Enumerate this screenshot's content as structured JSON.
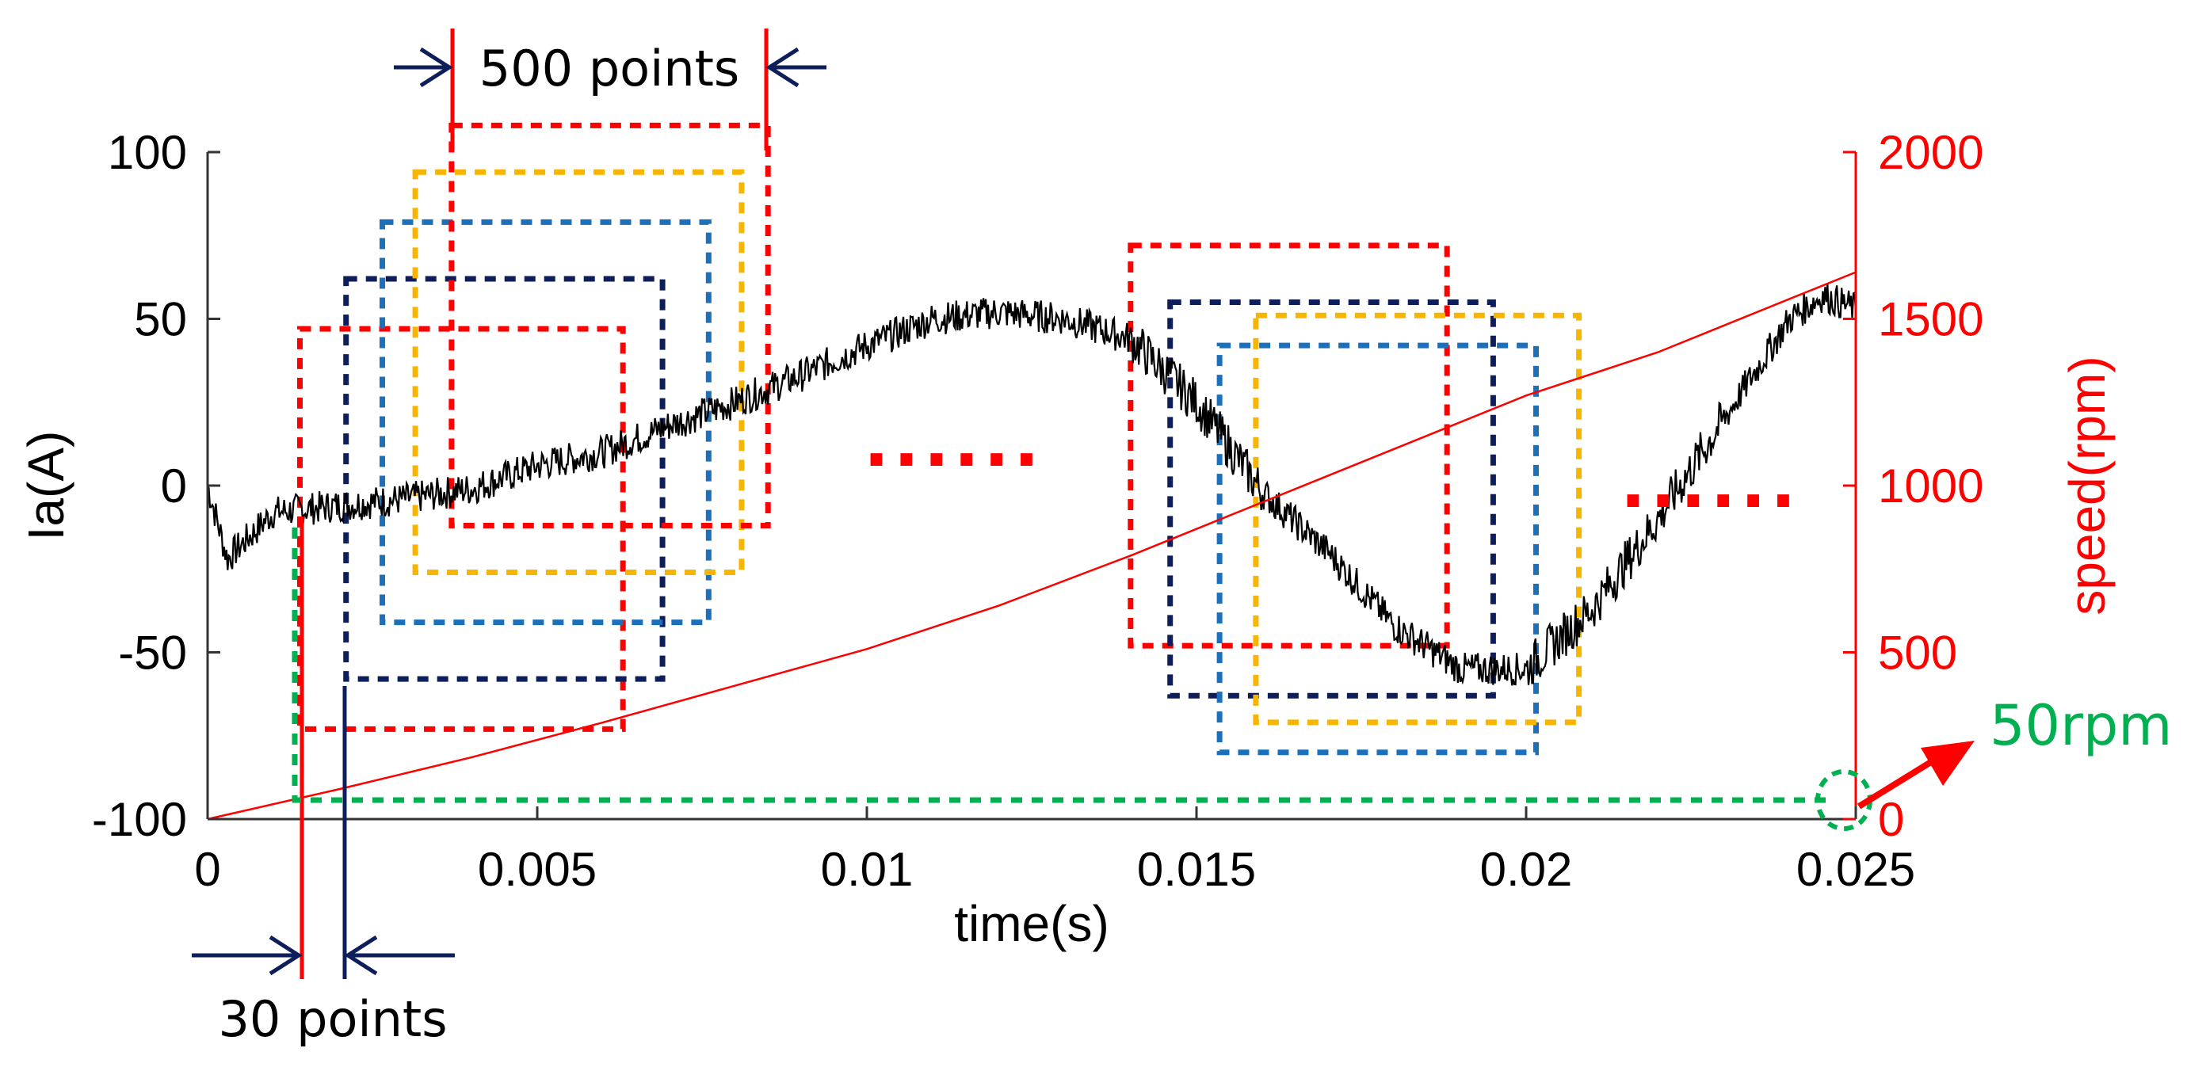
{
  "chart_data": {
    "type": "line",
    "xlabel": "time(s)",
    "ylabel_left": "Ia(A)",
    "ylabel_right": "speed(rpm)",
    "xlim": [
      0,
      0.025
    ],
    "ylim_left": [
      -100,
      100
    ],
    "ylim_right": [
      0,
      2000
    ],
    "x_ticks": [
      "0",
      "0.005",
      "0.01",
      "0.015",
      "0.02",
      "0.025"
    ],
    "y_left_ticks": [
      "100",
      "50",
      "0",
      "-50",
      "-100"
    ],
    "y_right_ticks": [
      "2000",
      "1500",
      "1000",
      "500",
      "0"
    ],
    "grid": false,
    "series": [
      {
        "axis": "left",
        "color": "#000000",
        "x": [
          0,
          0.0003,
          0.001,
          0.002,
          0.003,
          0.004,
          0.005,
          0.006,
          0.007,
          0.008,
          0.009,
          0.01,
          0.011,
          0.012,
          0.013,
          0.014,
          0.015,
          0.016,
          0.017,
          0.018,
          0.019,
          0.02,
          0.021,
          0.022,
          0.023,
          0.024,
          0.0245,
          0.025
        ],
        "y": [
          0,
          -22,
          -8,
          -6,
          -4,
          -1,
          6,
          10,
          18,
          25,
          33,
          42,
          50,
          52,
          50,
          44,
          25,
          -2,
          -20,
          -42,
          -55,
          -55,
          -37,
          -10,
          20,
          50,
          57,
          53
        ]
      },
      {
        "axis": "right",
        "color": "#ff0000",
        "x": [
          0,
          0.002,
          0.004,
          0.006,
          0.008,
          0.01,
          0.012,
          0.014,
          0.016,
          0.018,
          0.02,
          0.022,
          0.024,
          0.025
        ],
        "y": [
          0,
          90,
          185,
          290,
          400,
          510,
          640,
          790,
          950,
          1110,
          1270,
          1400,
          1560,
          1640
        ]
      }
    ],
    "windows": [
      {
        "color": "#ff0000",
        "x0": 0.0014,
        "x1": 0.0063,
        "y0": -73,
        "y1": 47
      },
      {
        "color": "#0d1e5a",
        "x0": 0.0021,
        "x1": 0.0069,
        "y0": -58,
        "y1": 62
      },
      {
        "color": "#1b6fbb",
        "x0": 0.00265,
        "x1": 0.0076,
        "y0": -41,
        "y1": 79
      },
      {
        "color": "#f7b500",
        "x0": 0.00315,
        "x1": 0.0081,
        "y0": -26,
        "y1": 94
      },
      {
        "color": "#ff0000",
        "x0": 0.0037,
        "x1": 0.0085,
        "y0": -12,
        "y1": 108
      },
      {
        "color": "#ff0000",
        "x0": 0.014,
        "x1": 0.0188,
        "y0": -48,
        "y1": 72
      },
      {
        "color": "#0d1e5a",
        "x0": 0.0146,
        "x1": 0.0195,
        "y0": -63,
        "y1": 55
      },
      {
        "color": "#1b6fbb",
        "x0": 0.01535,
        "x1": 0.02015,
        "y0": -80,
        "y1": 42
      },
      {
        "color": "#f7b500",
        "x0": 0.0159,
        "x1": 0.0208,
        "y0": -71,
        "y1": 51
      }
    ],
    "annotations": {
      "top_span": "500 points",
      "bottom_span": "30 points",
      "speed_note": "50rpm",
      "ellipsis_1": "......",
      "ellipsis_2": "......"
    },
    "colors": {
      "current": "#000000",
      "speed": "#ff0000",
      "arrow_navy": "#0d1e5a",
      "green": "#00b050"
    }
  }
}
